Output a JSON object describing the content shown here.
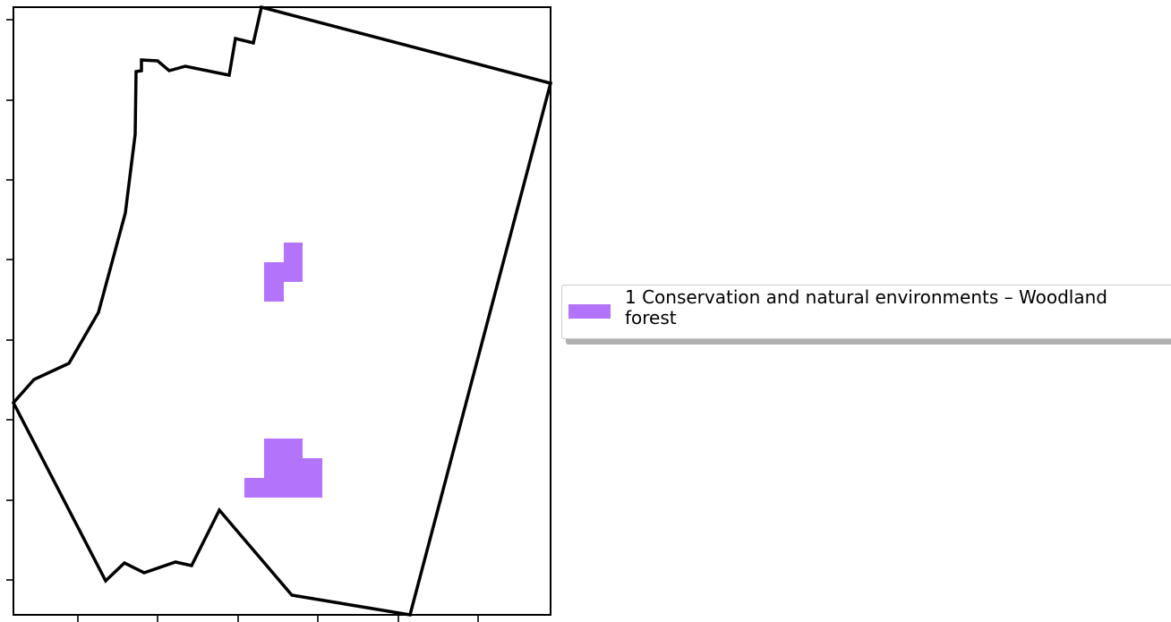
{
  "map": {
    "frame": "axes-box-no-tick-labels",
    "boundary_color": "#000000",
    "zones": [
      {
        "name": "1 Conservation and natural environments – Woodland forest",
        "color": "#b473fb"
      }
    ]
  },
  "legend": {
    "label": "1 Conservation and natural environments – Woodland\nforest",
    "swatch_color": "#b473fb"
  }
}
